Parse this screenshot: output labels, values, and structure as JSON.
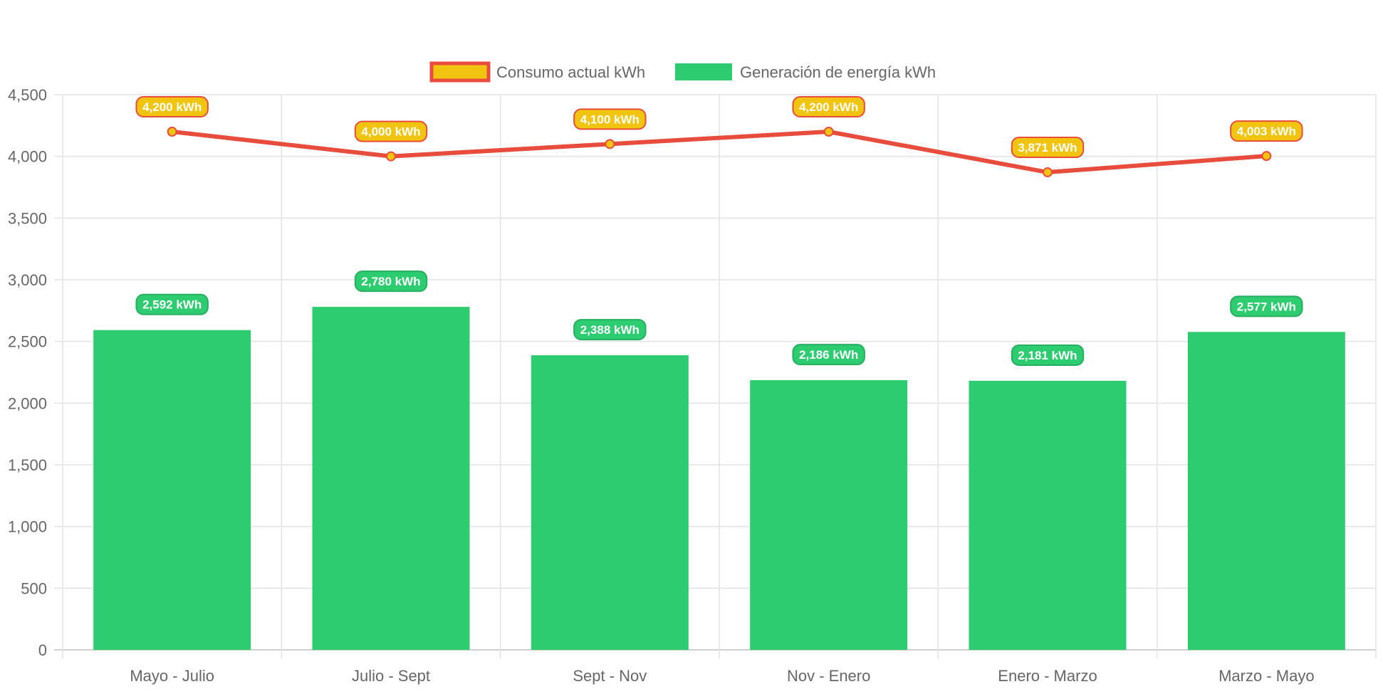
{
  "chart_data": {
    "type": "bar",
    "categories": [
      "Mayo - Julio",
      "Julio - Sept",
      "Sept - Nov",
      "Nov - Enero",
      "Enero - Marzo",
      "Marzo - Mayo"
    ],
    "series": [
      {
        "name": "Consumo actual kWh",
        "type": "line",
        "values": [
          4200,
          4000,
          4100,
          4200,
          3871,
          4003
        ],
        "labels": [
          "4,200 kWh",
          "4,000 kWh",
          "4,100 kWh",
          "4,200 kWh",
          "3,871 kWh",
          "4,003 kWh"
        ],
        "color": "#f1c40f",
        "border_color": "#e74c3c"
      },
      {
        "name": "Generación de energía kWh",
        "type": "bar",
        "values": [
          2592,
          2780,
          2388,
          2186,
          2181,
          2577
        ],
        "labels": [
          "2,592 kWh",
          "2,780 kWh",
          "2,388 kWh",
          "2,186 kWh",
          "2,181 kWh",
          "2,577 kWh"
        ],
        "color": "#2ecc71",
        "border_color": "#27ae60"
      }
    ],
    "yticks": [
      "0",
      "500",
      "1,000",
      "1,500",
      "2,000",
      "2,500",
      "3,000",
      "3,500",
      "4,000",
      "4,500"
    ],
    "ylim": [
      0,
      4500
    ],
    "grid": true,
    "legend": "top",
    "title": "",
    "xlabel": "",
    "ylabel": ""
  }
}
